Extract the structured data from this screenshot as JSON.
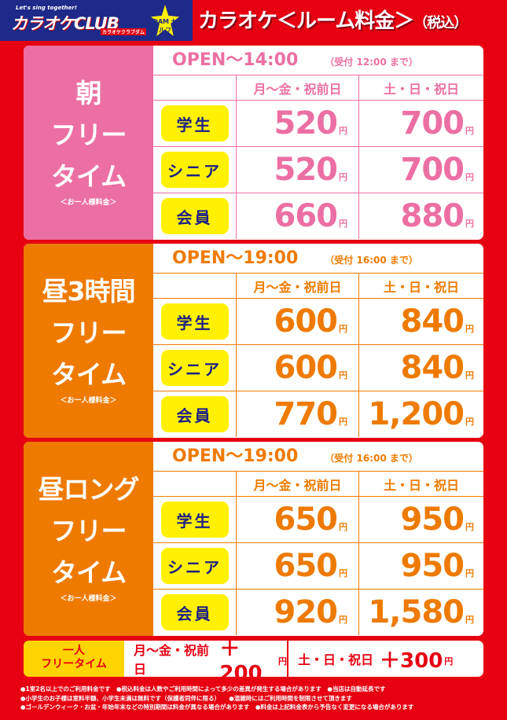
{
  "header": {
    "logo_tagline": "Let's sing together!",
    "logo_name": "カラオケCLUB",
    "logo_sub": "カラオケクラブダム",
    "dam_badge": "DAM セルフ",
    "title": "カラオケ＜ルーム料金＞",
    "title_tax": "（税込）"
  },
  "colors": {
    "red": "#e60012",
    "pink": "#ec6fa3",
    "orange": "#ee7a00",
    "navy": "#1d2087",
    "yellow": "#fff100"
  },
  "currency": "円",
  "col_headers": [
    "月～金・祝前日",
    "土・日・祝日"
  ],
  "sections": [
    {
      "title": "朝\nフリー\nタイム",
      "note": "＜お一人様料金＞",
      "open": "OPEN～14:00",
      "reception": "（受付 12:00 まで）",
      "color": "#ec6fa3",
      "rows": [
        {
          "label": "学生",
          "weekday": "520",
          "weekend": "700"
        },
        {
          "label": "シニア",
          "weekday": "520",
          "weekend": "700"
        },
        {
          "label": "会員",
          "weekday": "660",
          "weekend": "880"
        }
      ]
    },
    {
      "title": "昼3時間\nフリー\nタイム",
      "note": "＜お一人様料金＞",
      "open": "OPEN～19:00",
      "reception": "（受付 16:00 まで）",
      "color": "#ee7a00",
      "rows": [
        {
          "label": "学生",
          "weekday": "600",
          "weekend": "840"
        },
        {
          "label": "シニア",
          "weekday": "600",
          "weekend": "840"
        },
        {
          "label": "会員",
          "weekday": "770",
          "weekend": "1,200"
        }
      ]
    },
    {
      "title": "昼ロング\nフリー\nタイム",
      "note": "＜お一人様料金＞",
      "open": "OPEN～19:00",
      "reception": "（受付 16:00 まで）",
      "color": "#ee7a00",
      "rows": [
        {
          "label": "学生",
          "weekday": "650",
          "weekend": "950"
        },
        {
          "label": "シニア",
          "weekday": "650",
          "weekend": "950"
        },
        {
          "label": "会員",
          "weekday": "920",
          "weekend": "1,580"
        }
      ]
    }
  ],
  "solo": {
    "label_line1": "一人",
    "label_line2": "フリータイム",
    "weekday_label": "月～金・祝前日",
    "weekday_amount": "＋200",
    "weekend_label": "土・日・祝日",
    "weekend_amount": "＋300"
  },
  "notes": [
    "●1室2名以上でのご利用料金です　●税込料金は人数やご利用時間によって多少の差異が発生する場合があります　●当店は自動延長です",
    "●小学生のお子様は室料半額、小学生未満は無料です（保護者同伴に限る）　　●混雑時にはご利用時間を制限させて頂きます",
    "●ゴールデンウィーク・お盆・年始年末などの特別期間は料金が異なる場合があります　●料金は上記料金表から予告なく変更になる場合があります"
  ]
}
